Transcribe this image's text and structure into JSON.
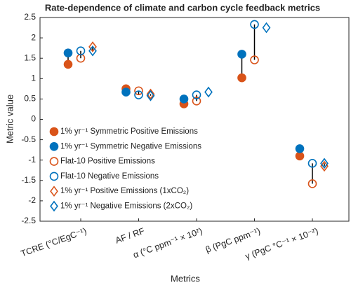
{
  "chart_data": {
    "type": "dot",
    "title": "Rate-dependence of climate and carbon cycle feedback metrics",
    "x_label": "Metrics",
    "y_label": "Metric value",
    "categories": [
      "TCRE (°C/EgC⁻¹)",
      "AF / RF",
      "α (°C ppm⁻¹ × 10²)",
      "β (PgC ppm⁻¹)",
      "γ (PgC °C⁻¹ × 10⁻²)"
    ],
    "series": [
      {
        "name": "1% yr⁻¹ Symmetric Positive Emissions",
        "color": "#d95319",
        "marker": "circle",
        "filled": true,
        "values": [
          1.35,
          0.75,
          0.38,
          1.02,
          -0.9
        ]
      },
      {
        "name": "1% yr⁻¹ Symmetric Negative Emissions",
        "color": "#0072bd",
        "marker": "circle",
        "filled": true,
        "values": [
          1.63,
          0.67,
          0.5,
          1.6,
          -0.72
        ]
      },
      {
        "name": "Flat-10 Positive Emissions",
        "color": "#d95319",
        "marker": "circle",
        "filled": false,
        "values": [
          1.5,
          0.7,
          0.45,
          1.46,
          -1.58
        ]
      },
      {
        "name": "Flat-10 Negative Emissions",
        "color": "#0072bd",
        "marker": "circle",
        "filled": false,
        "values": [
          1.68,
          0.6,
          0.6,
          2.33,
          -1.08
        ]
      },
      {
        "name": "1% yr⁻¹ Positive Emissions (1xCO₂)",
        "color": "#d95319",
        "marker": "diamond",
        "filled": false,
        "values": [
          1.78,
          0.62,
          null,
          null,
          -1.15
        ]
      },
      {
        "name": "1% yr⁻¹ Negative Emissions (2xCO₂)",
        "color": "#0072bd",
        "marker": "diamond",
        "filled": false,
        "values": [
          1.68,
          0.58,
          0.67,
          2.25,
          -1.08
        ]
      }
    ],
    "ylim": [
      -2.5,
      2.5
    ],
    "yticks": [
      -2.5,
      -2,
      -1.5,
      -1,
      -0.5,
      0,
      0.5,
      1,
      1.5,
      2,
      2.5
    ],
    "grid": false
  }
}
